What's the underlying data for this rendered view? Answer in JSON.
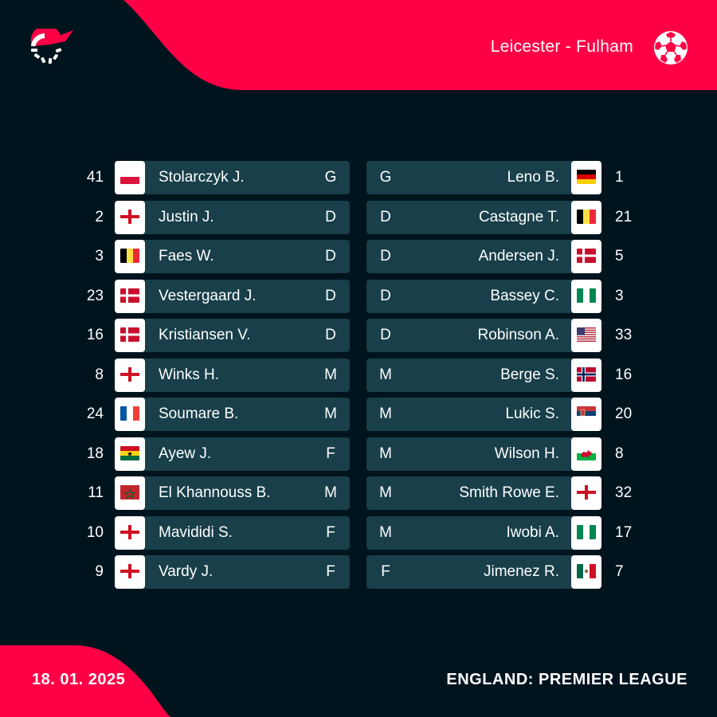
{
  "header": {
    "match_title": "Leicester - Fulham",
    "brand_color": "#ff0046",
    "background_color": "#00141e",
    "bar_color": "#183f4a"
  },
  "footer": {
    "date": "18. 01. 2025",
    "league": "ENGLAND: PREMIER LEAGUE"
  },
  "home": [
    {
      "number": "41",
      "name": "Stolarczyk J.",
      "position": "G",
      "flag": "poland"
    },
    {
      "number": "2",
      "name": "Justin J.",
      "position": "D",
      "flag": "england"
    },
    {
      "number": "3",
      "name": "Faes W.",
      "position": "D",
      "flag": "belgium"
    },
    {
      "number": "23",
      "name": "Vestergaard J.",
      "position": "D",
      "flag": "denmark"
    },
    {
      "number": "16",
      "name": "Kristiansen V.",
      "position": "D",
      "flag": "denmark"
    },
    {
      "number": "8",
      "name": "Winks H.",
      "position": "M",
      "flag": "england"
    },
    {
      "number": "24",
      "name": "Soumare B.",
      "position": "M",
      "flag": "france"
    },
    {
      "number": "18",
      "name": "Ayew J.",
      "position": "F",
      "flag": "ghana"
    },
    {
      "number": "11",
      "name": "El Khannouss B.",
      "position": "M",
      "flag": "morocco"
    },
    {
      "number": "10",
      "name": "Mavididi S.",
      "position": "F",
      "flag": "england"
    },
    {
      "number": "9",
      "name": "Vardy J.",
      "position": "F",
      "flag": "england"
    }
  ],
  "away": [
    {
      "number": "1",
      "name": "Leno B.",
      "position": "G",
      "flag": "germany"
    },
    {
      "number": "21",
      "name": "Castagne T.",
      "position": "D",
      "flag": "belgium"
    },
    {
      "number": "5",
      "name": "Andersen J.",
      "position": "D",
      "flag": "denmark"
    },
    {
      "number": "3",
      "name": "Bassey C.",
      "position": "D",
      "flag": "nigeria"
    },
    {
      "number": "33",
      "name": "Robinson A.",
      "position": "D",
      "flag": "usa"
    },
    {
      "number": "16",
      "name": "Berge S.",
      "position": "M",
      "flag": "norway"
    },
    {
      "number": "20",
      "name": "Lukic S.",
      "position": "M",
      "flag": "serbia"
    },
    {
      "number": "8",
      "name": "Wilson H.",
      "position": "M",
      "flag": "wales"
    },
    {
      "number": "32",
      "name": "Smith Rowe E.",
      "position": "M",
      "flag": "england"
    },
    {
      "number": "17",
      "name": "Iwobi A.",
      "position": "M",
      "flag": "nigeria"
    },
    {
      "number": "7",
      "name": "Jimenez R.",
      "position": "F",
      "flag": "mexico"
    }
  ],
  "icons": {
    "logo": "flashscore-logo-icon",
    "ball": "soccer-ball-icon"
  }
}
